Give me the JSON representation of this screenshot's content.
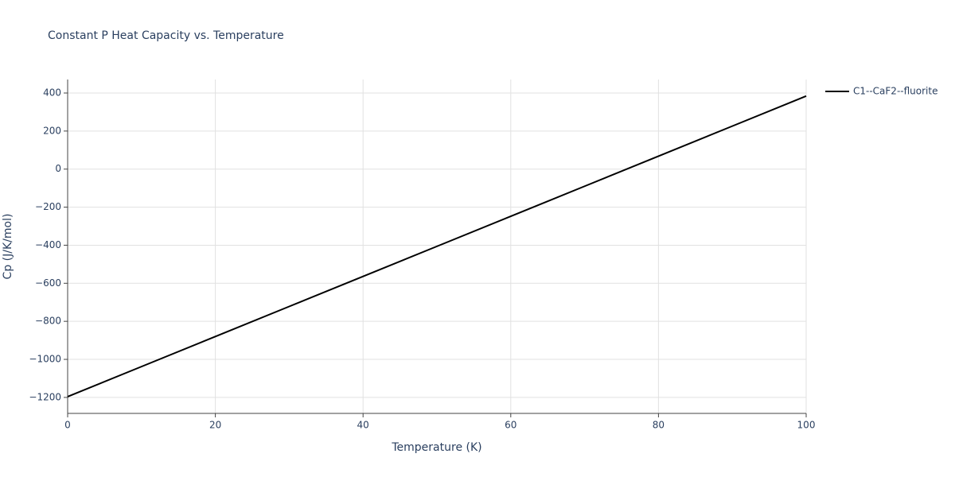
{
  "chart_data": {
    "type": "line",
    "title": "Constant P Heat Capacity vs. Temperature",
    "x_label": "Temperature (K)",
    "y_label": "Cp (J/K/mol)",
    "x": [
      0,
      10,
      20,
      30,
      40,
      50,
      60,
      70,
      80,
      90,
      100
    ],
    "series": [
      {
        "name": "C1--CaF2--fluorite",
        "color": "#000000",
        "values": [
          -1196,
          -1038,
          -880,
          -722,
          -564,
          -406,
          -248,
          -90,
          68,
          226,
          384
        ]
      }
    ],
    "xlim": [
      0,
      100
    ],
    "xticks": [
      0,
      20,
      40,
      60,
      80,
      100
    ],
    "ylim": [
      -1284,
      471
    ],
    "yticks": [
      {
        "value": -1200,
        "label": "−1200"
      },
      {
        "value": -1000,
        "label": "−1000"
      },
      {
        "value": -800,
        "label": "−800"
      },
      {
        "value": -600,
        "label": "−600"
      },
      {
        "value": -400,
        "label": "−400"
      },
      {
        "value": -200,
        "label": "−200"
      },
      0,
      200,
      400
    ],
    "grid": true,
    "legend": "right"
  }
}
